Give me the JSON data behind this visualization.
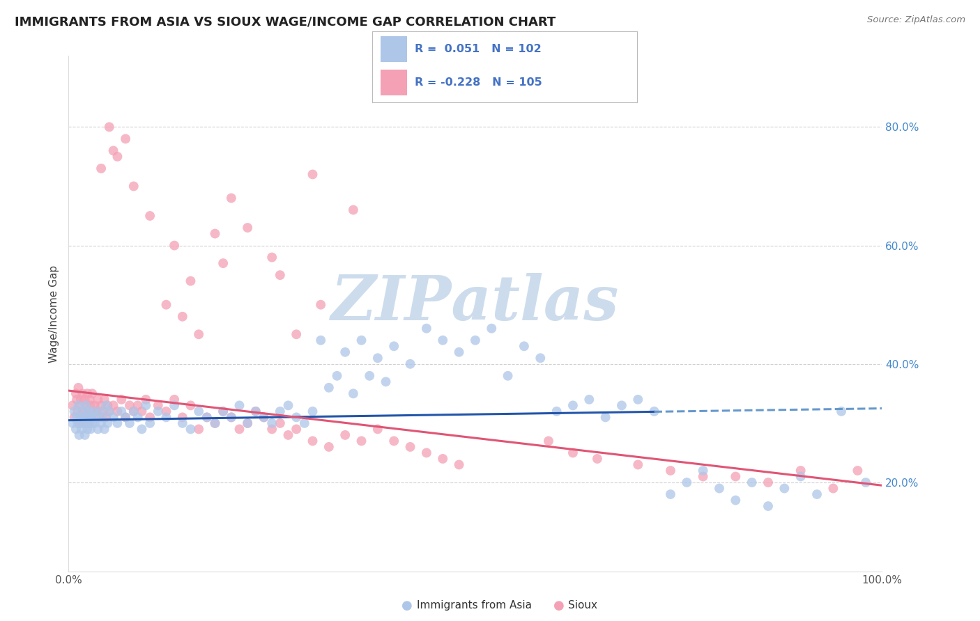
{
  "title": "IMMIGRANTS FROM ASIA VS SIOUX WAGE/INCOME GAP CORRELATION CHART",
  "source_text": "Source: ZipAtlas.com",
  "ylabel": "Wage/Income Gap",
  "xlim": [
    0.0,
    1.0
  ],
  "ylim": [
    0.05,
    0.92
  ],
  "ytick_positions": [
    0.2,
    0.4,
    0.6,
    0.8
  ],
  "ytick_labels": [
    "20.0%",
    "40.0%",
    "60.0%",
    "80.0%"
  ],
  "blue_R": 0.051,
  "blue_N": 102,
  "pink_R": -0.228,
  "pink_N": 105,
  "blue_color": "#aec6e8",
  "blue_line_color": "#2255aa",
  "blue_dash_color": "#6699cc",
  "pink_color": "#f4a0b5",
  "pink_line_color": "#e05575",
  "background_color": "#ffffff",
  "grid_color": "#cccccc",
  "title_color": "#222222",
  "watermark_color": "#cddcec",
  "ytick_color": "#4488cc",
  "legend_color": "#4472c4",
  "blue_trend_start_y": 0.305,
  "blue_trend_end_y": 0.325,
  "pink_trend_start_y": 0.355,
  "pink_trend_end_y": 0.195,
  "blue_scatter_x": [
    0.005,
    0.007,
    0.009,
    0.01,
    0.011,
    0.012,
    0.013,
    0.014,
    0.015,
    0.016,
    0.017,
    0.018,
    0.019,
    0.02,
    0.021,
    0.022,
    0.023,
    0.024,
    0.025,
    0.026,
    0.027,
    0.028,
    0.029,
    0.03,
    0.032,
    0.034,
    0.036,
    0.038,
    0.04,
    0.042,
    0.044,
    0.046,
    0.048,
    0.05,
    0.055,
    0.06,
    0.065,
    0.07,
    0.075,
    0.08,
    0.085,
    0.09,
    0.095,
    0.1,
    0.11,
    0.12,
    0.13,
    0.14,
    0.15,
    0.16,
    0.17,
    0.18,
    0.19,
    0.2,
    0.21,
    0.22,
    0.23,
    0.24,
    0.25,
    0.26,
    0.27,
    0.28,
    0.29,
    0.3,
    0.31,
    0.32,
    0.33,
    0.34,
    0.35,
    0.36,
    0.37,
    0.38,
    0.39,
    0.4,
    0.42,
    0.44,
    0.46,
    0.48,
    0.5,
    0.52,
    0.54,
    0.56,
    0.58,
    0.6,
    0.62,
    0.64,
    0.66,
    0.68,
    0.7,
    0.72,
    0.74,
    0.76,
    0.78,
    0.8,
    0.82,
    0.84,
    0.86,
    0.88,
    0.9,
    0.92,
    0.95,
    0.98
  ],
  "blue_scatter_y": [
    0.3,
    0.32,
    0.29,
    0.31,
    0.3,
    0.33,
    0.28,
    0.31,
    0.3,
    0.29,
    0.32,
    0.31,
    0.3,
    0.28,
    0.33,
    0.31,
    0.29,
    0.3,
    0.32,
    0.31,
    0.29,
    0.31,
    0.3,
    0.32,
    0.3,
    0.31,
    0.29,
    0.32,
    0.3,
    0.31,
    0.29,
    0.33,
    0.3,
    0.32,
    0.31,
    0.3,
    0.32,
    0.31,
    0.3,
    0.32,
    0.31,
    0.29,
    0.33,
    0.3,
    0.32,
    0.31,
    0.33,
    0.3,
    0.29,
    0.32,
    0.31,
    0.3,
    0.32,
    0.31,
    0.33,
    0.3,
    0.32,
    0.31,
    0.3,
    0.32,
    0.33,
    0.31,
    0.3,
    0.32,
    0.44,
    0.36,
    0.38,
    0.42,
    0.35,
    0.44,
    0.38,
    0.41,
    0.37,
    0.43,
    0.4,
    0.46,
    0.44,
    0.42,
    0.44,
    0.46,
    0.38,
    0.43,
    0.41,
    0.32,
    0.33,
    0.34,
    0.31,
    0.33,
    0.34,
    0.32,
    0.18,
    0.2,
    0.22,
    0.19,
    0.17,
    0.2,
    0.16,
    0.19,
    0.21,
    0.18,
    0.32,
    0.2
  ],
  "pink_scatter_x": [
    0.005,
    0.007,
    0.009,
    0.01,
    0.011,
    0.012,
    0.013,
    0.014,
    0.015,
    0.016,
    0.017,
    0.018,
    0.019,
    0.02,
    0.021,
    0.022,
    0.023,
    0.024,
    0.025,
    0.026,
    0.027,
    0.028,
    0.029,
    0.03,
    0.032,
    0.034,
    0.036,
    0.038,
    0.04,
    0.042,
    0.044,
    0.046,
    0.048,
    0.05,
    0.055,
    0.06,
    0.065,
    0.07,
    0.075,
    0.08,
    0.085,
    0.09,
    0.095,
    0.1,
    0.11,
    0.12,
    0.13,
    0.14,
    0.15,
    0.16,
    0.17,
    0.18,
    0.19,
    0.2,
    0.21,
    0.22,
    0.23,
    0.24,
    0.25,
    0.26,
    0.27,
    0.28,
    0.3,
    0.32,
    0.34,
    0.36,
    0.38,
    0.4,
    0.42,
    0.44,
    0.46,
    0.48,
    0.15,
    0.2,
    0.18,
    0.25,
    0.3,
    0.35,
    0.12,
    0.16,
    0.22,
    0.19,
    0.14,
    0.06,
    0.08,
    0.1,
    0.13,
    0.26,
    0.31,
    0.28,
    0.59,
    0.62,
    0.65,
    0.7,
    0.74,
    0.78,
    0.82,
    0.86,
    0.9,
    0.94,
    0.97,
    0.05,
    0.07,
    0.04,
    0.055
  ],
  "pink_scatter_y": [
    0.33,
    0.31,
    0.35,
    0.34,
    0.32,
    0.36,
    0.3,
    0.33,
    0.34,
    0.31,
    0.35,
    0.32,
    0.3,
    0.34,
    0.33,
    0.31,
    0.35,
    0.32,
    0.3,
    0.34,
    0.33,
    0.31,
    0.35,
    0.32,
    0.33,
    0.32,
    0.34,
    0.31,
    0.33,
    0.32,
    0.34,
    0.31,
    0.33,
    0.32,
    0.33,
    0.32,
    0.34,
    0.31,
    0.33,
    0.32,
    0.33,
    0.32,
    0.34,
    0.31,
    0.33,
    0.32,
    0.34,
    0.31,
    0.33,
    0.29,
    0.31,
    0.3,
    0.32,
    0.31,
    0.29,
    0.3,
    0.32,
    0.31,
    0.29,
    0.3,
    0.28,
    0.29,
    0.27,
    0.26,
    0.28,
    0.27,
    0.29,
    0.27,
    0.26,
    0.25,
    0.24,
    0.23,
    0.54,
    0.68,
    0.62,
    0.58,
    0.72,
    0.66,
    0.5,
    0.45,
    0.63,
    0.57,
    0.48,
    0.75,
    0.7,
    0.65,
    0.6,
    0.55,
    0.5,
    0.45,
    0.27,
    0.25,
    0.24,
    0.23,
    0.22,
    0.21,
    0.21,
    0.2,
    0.22,
    0.19,
    0.22,
    0.8,
    0.78,
    0.73,
    0.76
  ]
}
